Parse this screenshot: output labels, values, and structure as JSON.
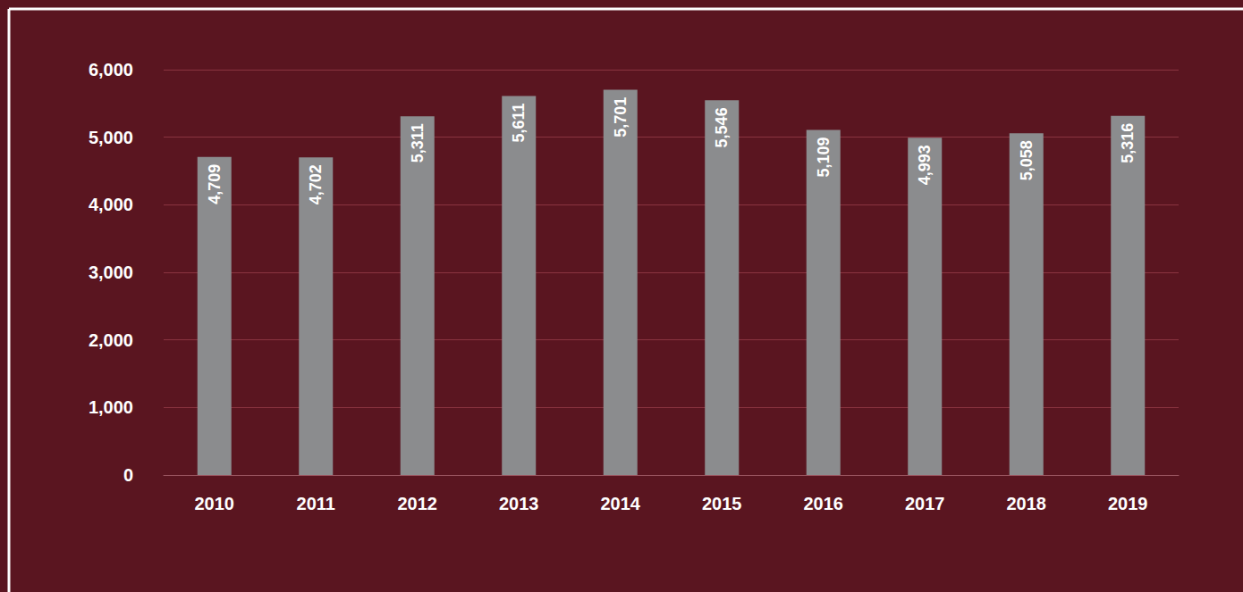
{
  "chart_data": {
    "type": "bar",
    "categories": [
      "2010",
      "2011",
      "2012",
      "2013",
      "2014",
      "2015",
      "2016",
      "2017",
      "2018",
      "2019"
    ],
    "values": [
      4709,
      4702,
      5311,
      5611,
      5701,
      5546,
      5109,
      4993,
      5058,
      5316
    ],
    "value_labels": [
      "4,709",
      "4,702",
      "5,311",
      "5,611",
      "5,701",
      "5,546",
      "5,109",
      "4,993",
      "5,058",
      "5,316"
    ],
    "color": "#8b8c8e",
    "ylim": [
      0,
      6000
    ],
    "yticks": [
      0,
      {
        "value": 1000,
        "label": "1,000"
      },
      {
        "value": 2000,
        "label": "2,000"
      },
      {
        "value": 3000,
        "label": "3,000"
      },
      {
        "value": 4000,
        "label": "4,000"
      },
      {
        "value": 5000,
        "label": "5,000"
      },
      {
        "value": 6000,
        "label": "6,000"
      }
    ],
    "grid": true,
    "data_labels": true
  }
}
